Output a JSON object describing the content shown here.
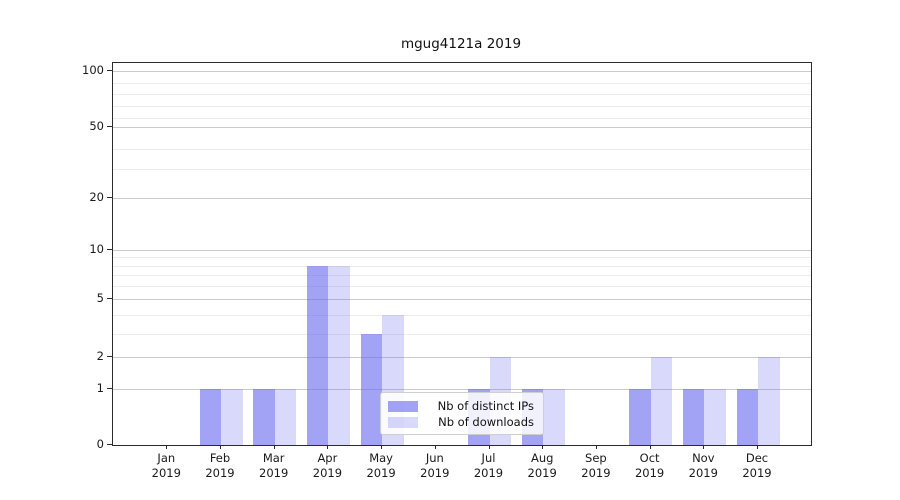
{
  "chart_data": {
    "type": "bar",
    "title": "mgug4121a 2019",
    "categories": [
      "Jan",
      "Feb",
      "Mar",
      "Apr",
      "May",
      "Jun",
      "Jul",
      "Aug",
      "Sep",
      "Oct",
      "Nov",
      "Dec"
    ],
    "year_label": "2019",
    "series": [
      {
        "name": "Nb of distinct IPs",
        "color": "#6666ee",
        "alpha": 0.6,
        "effective_color": "#a3a3f2",
        "values": [
          0,
          1,
          1,
          8,
          3,
          0,
          1,
          1,
          0,
          1,
          1,
          1
        ]
      },
      {
        "name": "Nb of downloads",
        "color": "#6666ee",
        "alpha": 0.25,
        "effective_color": "#d8d8fa",
        "values": [
          0,
          1,
          1,
          8,
          4,
          0,
          2,
          1,
          0,
          2,
          1,
          2
        ]
      }
    ],
    "yticks": [
      0,
      1,
      2,
      5,
      10,
      20,
      50,
      100
    ],
    "minor_yticks": [
      3,
      4,
      6,
      7,
      8,
      9,
      30,
      40,
      60,
      70,
      80,
      90
    ],
    "ylim": [
      0,
      100
    ],
    "scale": "log-like (0,1,2,5,10,20,50,100)",
    "grid": "horizontal",
    "legend_position": "lower center-right inside plot"
  }
}
